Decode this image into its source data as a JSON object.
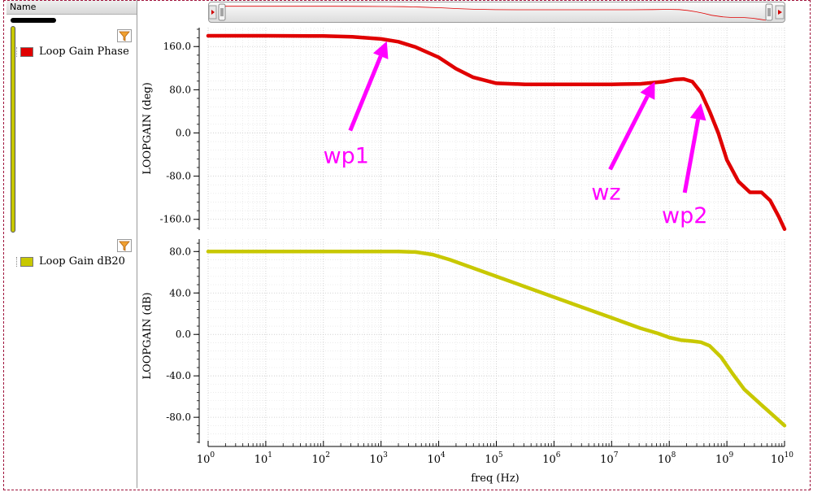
{
  "strips": {
    "header": "Name",
    "items": [
      {
        "label": "Loop Gain Phase",
        "color": "#e00000"
      },
      {
        "label": "Loop Gain dB20",
        "color": "#c8c800"
      }
    ]
  },
  "colors": {
    "phase": "#e00000",
    "gain": "#c8c800",
    "annotation": "#ff00ff",
    "grid": "#d8d8d8"
  },
  "chart_data": [
    {
      "type": "line",
      "ylabel": "LOOPGAIN (deg)",
      "xscale": "log",
      "xlim": [
        1,
        10000000000
      ],
      "ylim": [
        -180,
        195
      ],
      "yticks": [
        160,
        80,
        0,
        -80,
        -160
      ],
      "ytick_labels": [
        "160.0",
        "80.0",
        "0.0",
        "-80.0",
        "-160.0"
      ],
      "series": [
        {
          "name": "Loop Gain Phase",
          "color": "#e00000",
          "x_log10": [
            0,
            1,
            2,
            2.5,
            3,
            3.3,
            3.6,
            4,
            4.3,
            4.6,
            5,
            5.5,
            6,
            6.5,
            7,
            7.5,
            7.9,
            8.1,
            8.25,
            8.4,
            8.55,
            8.7,
            8.85,
            9.0,
            9.2,
            9.4,
            9.6,
            9.75,
            9.9,
            10
          ],
          "y": [
            180,
            180,
            179.5,
            178,
            174,
            169,
            159,
            140,
            119,
            103,
            92,
            90,
            90,
            90,
            90,
            91,
            95,
            99,
            100,
            95,
            75,
            40,
            0,
            -50,
            -90,
            -110,
            -110,
            -125,
            -155,
            -178
          ]
        }
      ],
      "annotations": [
        {
          "text": "wp1",
          "x_log10": 3.1,
          "y": 170
        },
        {
          "text": "wz",
          "x_log10": 7.75,
          "y": 95
        },
        {
          "text": "wp2",
          "x_log10": 8.55,
          "y": 55
        }
      ]
    },
    {
      "type": "line",
      "xlabel": "freq (Hz)",
      "ylabel": "LOOPGAIN (dB)",
      "xscale": "log",
      "xlim": [
        1,
        10000000000
      ],
      "ylim": [
        -105,
        92
      ],
      "yticks": [
        80,
        40,
        0,
        -40,
        -80
      ],
      "ytick_labels": [
        "80.0",
        "40.0",
        "0.0",
        "-40.0",
        "-80.0"
      ],
      "xticks_log10": [
        0,
        1,
        2,
        3,
        4,
        5,
        6,
        7,
        8,
        9,
        10
      ],
      "series": [
        {
          "name": "Loop Gain dB20",
          "color": "#c8c800",
          "x_log10": [
            0,
            1,
            2,
            3,
            3.3,
            3.6,
            3.9,
            4.2,
            4.5,
            5,
            5.5,
            6,
            6.5,
            7,
            7.5,
            7.8,
            8.0,
            8.2,
            8.4,
            8.55,
            8.7,
            8.9,
            9.1,
            9.3,
            9.6,
            9.8,
            10
          ],
          "y": [
            80,
            80,
            80,
            80,
            80,
            79.5,
            77,
            72,
            66,
            56,
            46,
            36,
            26,
            16,
            6,
            1,
            -3,
            -5.5,
            -6.5,
            -7.5,
            -11,
            -22,
            -38,
            -53,
            -68,
            -78,
            -88
          ]
        }
      ]
    }
  ]
}
